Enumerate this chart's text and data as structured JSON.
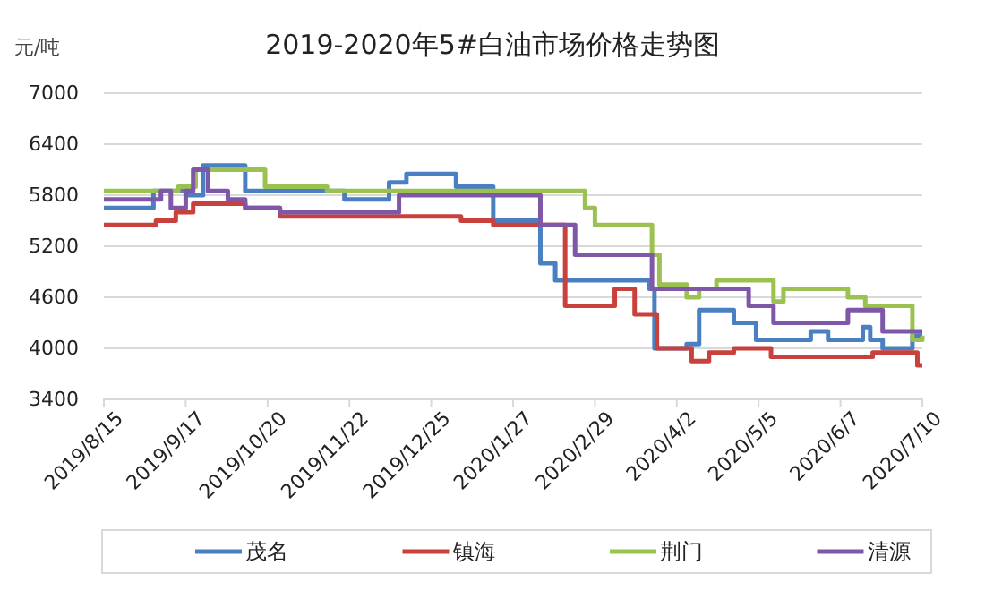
{
  "chart_data": {
    "type": "step",
    "title": "2019-2020年5#白油市场价格走势图",
    "ylabel": "元/吨",
    "xlim": [
      "2019-08-15",
      "2020-07-10"
    ],
    "xticks": [
      {
        "value": "2019-08-15",
        "label": "2019/8/15"
      },
      {
        "value": "2019-09-17",
        "label": "2019/9/17"
      },
      {
        "value": "2019-10-20",
        "label": "2019/10/20"
      },
      {
        "value": "2019-11-22",
        "label": "2019/11/22"
      },
      {
        "value": "2019-12-25",
        "label": "2019/12/25"
      },
      {
        "value": "2020-01-27",
        "label": "2020/1/27"
      },
      {
        "value": "2020-02-29",
        "label": "2020/2/29"
      },
      {
        "value": "2020-04-02",
        "label": "2020/4/2"
      },
      {
        "value": "2020-05-05",
        "label": "2020/5/5"
      },
      {
        "value": "2020-06-07",
        "label": "2020/6/7"
      },
      {
        "value": "2020-07-10",
        "label": "2020/7/10"
      }
    ],
    "ylim": [
      3400,
      7000
    ],
    "yticks": [
      3400,
      4000,
      4600,
      5200,
      5800,
      6400,
      7000
    ],
    "grid": "y",
    "legend": "bottom",
    "series": [
      {
        "name": "茂名",
        "color": "#4a7fc1",
        "x": [
          "2019-08-15",
          "2019-09-04",
          "2019-09-17",
          "2019-09-24",
          "2019-10-11",
          "2019-11-20",
          "2019-12-08",
          "2019-12-15",
          "2020-01-04",
          "2020-01-19",
          "2020-02-07",
          "2020-02-13",
          "2020-03-22",
          "2020-03-24",
          "2020-04-06",
          "2020-04-11",
          "2020-04-25",
          "2020-05-04",
          "2020-05-26",
          "2020-06-02",
          "2020-06-16",
          "2020-06-19",
          "2020-06-24",
          "2020-07-06",
          "2020-07-10"
        ],
        "values": [
          5650,
          5850,
          5800,
          6150,
          5850,
          5750,
          5950,
          6050,
          5900,
          5500,
          5000,
          4800,
          4700,
          4000,
          4050,
          4450,
          4300,
          4100,
          4200,
          4100,
          4250,
          4100,
          4000,
          4150,
          4150
        ]
      },
      {
        "name": "镇海",
        "color": "#c9413c",
        "x": [
          "2019-08-15",
          "2019-09-05",
          "2019-09-13",
          "2019-09-20",
          "2019-10-11",
          "2019-10-25",
          "2020-01-06",
          "2020-01-19",
          "2020-02-17",
          "2020-03-08",
          "2020-03-16",
          "2020-03-25",
          "2020-04-08",
          "2020-04-15",
          "2020-04-25",
          "2020-05-10",
          "2020-06-20",
          "2020-07-08",
          "2020-07-10"
        ],
        "values": [
          5450,
          5500,
          5600,
          5700,
          5650,
          5550,
          5500,
          5450,
          4500,
          4700,
          4400,
          4000,
          3850,
          3950,
          4000,
          3900,
          3950,
          3800,
          3800
        ]
      },
      {
        "name": "荆门",
        "color": "#9bc150",
        "x": [
          "2019-08-15",
          "2019-09-14",
          "2019-09-21",
          "2019-10-19",
          "2019-11-13",
          "2020-02-25",
          "2020-02-29",
          "2020-03-23",
          "2020-03-26",
          "2020-04-06",
          "2020-04-11",
          "2020-04-18",
          "2020-05-11",
          "2020-05-15",
          "2020-06-10",
          "2020-06-17",
          "2020-07-06",
          "2020-07-10"
        ],
        "values": [
          5850,
          5900,
          6100,
          5900,
          5850,
          5650,
          5450,
          5100,
          4750,
          4600,
          4700,
          4800,
          4550,
          4700,
          4600,
          4500,
          4100,
          4150
        ]
      },
      {
        "name": "清源",
        "color": "#7f57a8",
        "x": [
          "2019-08-15",
          "2019-09-07",
          "2019-09-11",
          "2019-09-17",
          "2019-09-20",
          "2019-09-26",
          "2019-10-04",
          "2019-10-11",
          "2019-10-25",
          "2019-12-12",
          "2020-02-07",
          "2020-02-21",
          "2020-03-23",
          "2020-05-01",
          "2020-05-11",
          "2020-06-10",
          "2020-06-24",
          "2020-07-10"
        ],
        "values": [
          5750,
          5850,
          5650,
          5850,
          6100,
          5850,
          5750,
          5650,
          5600,
          5800,
          5450,
          5100,
          4700,
          4500,
          4300,
          4450,
          4200,
          4200
        ]
      }
    ]
  }
}
